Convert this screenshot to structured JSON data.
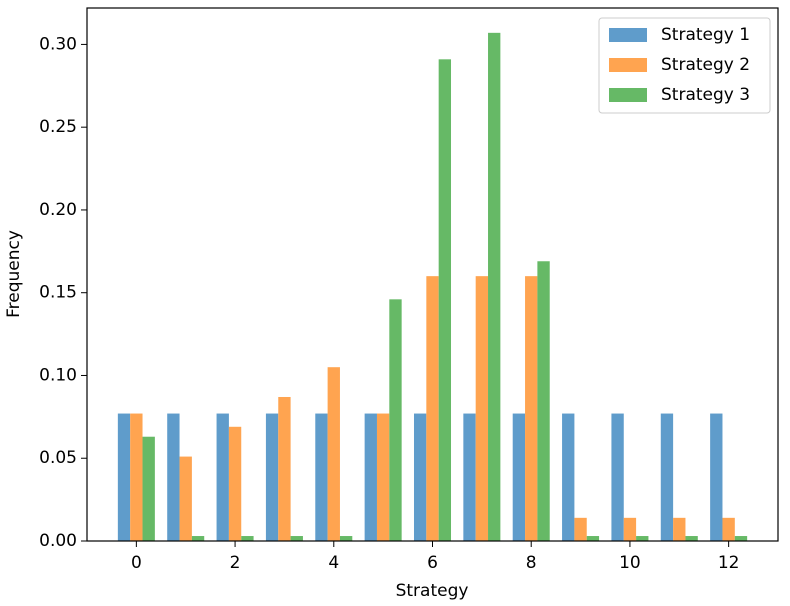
{
  "chart_data": {
    "type": "bar",
    "xlabel": "Strategy",
    "ylabel": "Frequency",
    "x": [
      0,
      1,
      2,
      3,
      4,
      5,
      6,
      7,
      8,
      9,
      10,
      11,
      12
    ],
    "series": [
      {
        "name": "Strategy 1",
        "color": "#5f9ccb",
        "values": [
          0.077,
          0.077,
          0.077,
          0.077,
          0.077,
          0.077,
          0.077,
          0.077,
          0.077,
          0.077,
          0.077,
          0.077,
          0.077
        ]
      },
      {
        "name": "Strategy 2",
        "color": "#ffa450",
        "values": [
          0.077,
          0.051,
          0.069,
          0.087,
          0.105,
          0.077,
          0.16,
          0.16,
          0.16,
          0.014,
          0.014,
          0.014,
          0.014
        ]
      },
      {
        "name": "Strategy 3",
        "color": "#66b966",
        "values": [
          0.063,
          0.003,
          0.003,
          0.003,
          0.003,
          0.146,
          0.291,
          0.307,
          0.169,
          0.003,
          0.003,
          0.003,
          0.003
        ]
      }
    ],
    "xlim": [
      -1,
      13
    ],
    "xticks": [
      0,
      2,
      4,
      6,
      8,
      10,
      12
    ],
    "ylim": [
      0,
      0.322
    ],
    "yticks": [
      {
        "value": 0,
        "label": "0.00"
      },
      {
        "value": 0.05,
        "label": "0.05"
      },
      {
        "value": 0.1,
        "label": "0.10"
      },
      {
        "value": 0.15,
        "label": "0.15"
      },
      {
        "value": 0.2,
        "label": "0.20"
      },
      {
        "value": 0.25,
        "label": "0.25"
      },
      {
        "value": 0.3,
        "label": "0.30"
      }
    ],
    "legend": "upper right"
  }
}
